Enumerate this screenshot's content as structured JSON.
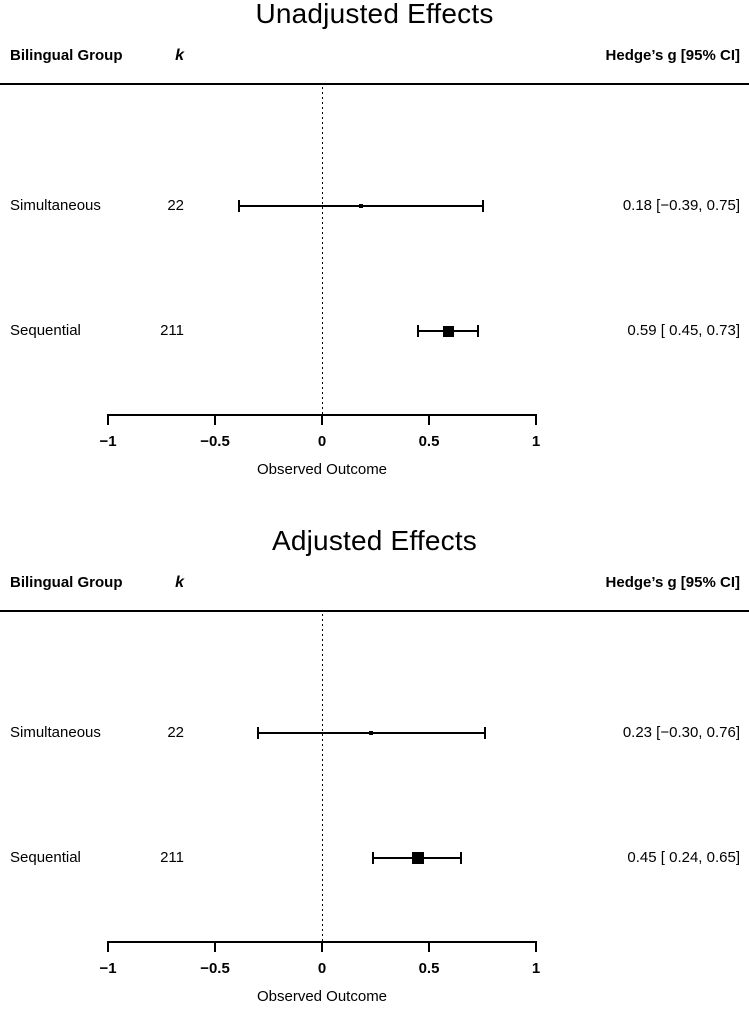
{
  "page": {
    "background": "#ffffff",
    "foreground": "#000000"
  },
  "chart_data": [
    {
      "type": "forest",
      "title": "Unadjusted Effects",
      "col_headers": {
        "group": "Bilingual Group",
        "k": "k",
        "effect": "Hedge’s g [95% CI]"
      },
      "xlabel": "Observed Outcome",
      "xlim": [
        -1,
        1
      ],
      "xticks": [
        -1,
        -0.5,
        0,
        0.5,
        1
      ],
      "xtick_labels": [
        "−1",
        "−0.5",
        "0",
        "0.5",
        "1"
      ],
      "zero_line": 0,
      "legend_position": "none",
      "rows": [
        {
          "group": "Simultaneous",
          "k": "22",
          "est": 0.18,
          "lo": -0.39,
          "hi": 0.75,
          "annotation": "0.18 [−0.39, 0.75]",
          "marker_size": 4
        },
        {
          "group": "Sequential",
          "k": "211",
          "est": 0.59,
          "lo": 0.45,
          "hi": 0.73,
          "annotation": "0.59 [ 0.45, 0.73]",
          "marker_size": 11
        }
      ]
    },
    {
      "type": "forest",
      "title": "Adjusted Effects",
      "col_headers": {
        "group": "Bilingual Group",
        "k": "k",
        "effect": "Hedge’s g [95% CI]"
      },
      "xlabel": "Observed Outcome",
      "xlim": [
        -1,
        1
      ],
      "xticks": [
        -1,
        -0.5,
        0,
        0.5,
        1
      ],
      "xtick_labels": [
        "−1",
        "−0.5",
        "0",
        "0.5",
        "1"
      ],
      "zero_line": 0,
      "legend_position": "none",
      "rows": [
        {
          "group": "Simultaneous",
          "k": "22",
          "est": 0.23,
          "lo": -0.3,
          "hi": 0.76,
          "annotation": "0.23 [−0.30, 0.76]",
          "marker_size": 4
        },
        {
          "group": "Sequential",
          "k": "211",
          "est": 0.45,
          "lo": 0.24,
          "hi": 0.65,
          "annotation": "0.45 [ 0.24, 0.65]",
          "marker_size": 12
        }
      ]
    }
  ]
}
